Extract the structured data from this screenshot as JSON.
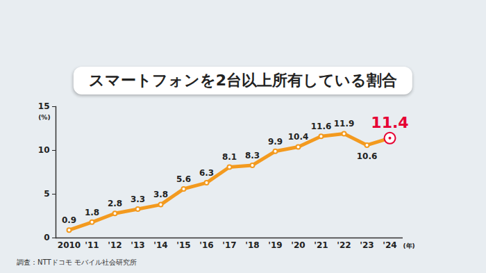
{
  "chart_data": {
    "type": "line",
    "title": "スマートフォンを2台以上所有している割合",
    "x_label": "(年)",
    "y_label": "(%)",
    "source": "調査：NTTドコモ モバイル社会研究所",
    "categories": [
      "2010",
      "'11",
      "'12",
      "'13",
      "'14",
      "'15",
      "'16",
      "'17",
      "'18",
      "'19",
      "'20",
      "'21",
      "'22",
      "'23",
      "'24"
    ],
    "values": [
      0.9,
      1.8,
      2.8,
      3.3,
      3.8,
      5.6,
      6.3,
      8.1,
      8.3,
      9.9,
      10.4,
      11.6,
      11.9,
      10.6,
      11.4
    ],
    "color": "#f39a1f",
    "colors": [
      "#f39a1f",
      "#f39a1f",
      "#f39a1f",
      "#f39a1f",
      "#f39a1f",
      "#f39a1f",
      "#f39a1f",
      "#f39a1f",
      "#f39a1f",
      "#f39a1f",
      "#f39a1f",
      "#f39a1f",
      "#f39a1f",
      "#f39a1f",
      "#e60033"
    ],
    "marker": "circle",
    "ylim": [
      0,
      15
    ],
    "yticks": [
      0,
      5,
      10,
      15
    ],
    "grid": false,
    "data_labels": true
  }
}
